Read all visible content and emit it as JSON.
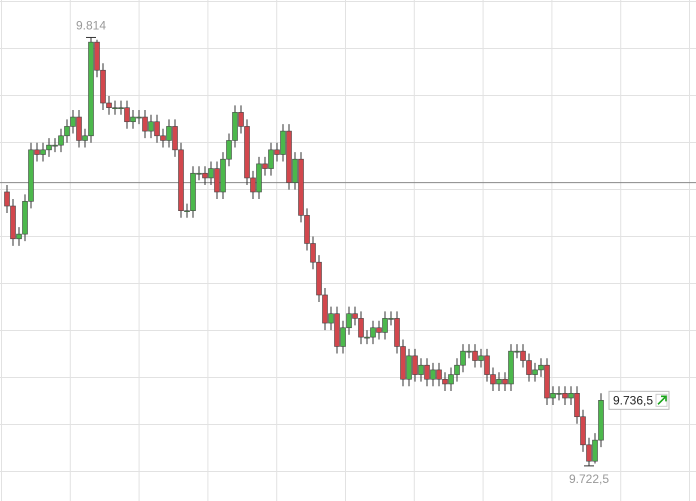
{
  "chart_data": {
    "type": "candlestick",
    "open": [
      9781,
      9778,
      9771,
      9772,
      9779,
      9790,
      9789,
      9790,
      9791,
      9791,
      9793,
      9795,
      9797,
      9792,
      9793,
      9813,
      9807,
      9800,
      9799,
      9799,
      9799,
      9796,
      9797,
      9797,
      9794,
      9796,
      9793,
      9792,
      9795,
      9790,
      9777,
      9777,
      9785,
      9785,
      9784,
      9786,
      9781,
      9788,
      9792,
      9798,
      9795,
      9784,
      9781,
      9787,
      9786,
      9790,
      9789,
      9794,
      9783,
      9788,
      9776,
      9770,
      9766,
      9759,
      9753,
      9755,
      9748,
      9752,
      9755,
      9754,
      9750,
      9750,
      9752,
      9751,
      9754,
      9754,
      9748,
      9741,
      9746,
      9742,
      9744,
      9741,
      9743,
      9741,
      9740,
      9742,
      9744,
      9747,
      9747,
      9745,
      9746,
      9742,
      9740,
      9741,
      9740,
      9747,
      9747,
      9745,
      9742,
      9743,
      9744,
      9737,
      9738,
      9738,
      9737,
      9738,
      9733,
      9727,
      9723.5,
      9728
    ],
    "high": [
      9782.5,
      9779.5,
      9773.5,
      9780.5,
      9791.5,
      9791.5,
      9791.5,
      9792.5,
      9792.5,
      9794.5,
      9796.5,
      9798.5,
      9798.5,
      9794.5,
      9814,
      9813.5,
      9808.5,
      9801.5,
      9800.5,
      9800.5,
      9800.5,
      9798.5,
      9798.5,
      9798.5,
      9797.5,
      9797.5,
      9794.5,
      9796.5,
      9796.5,
      9791.5,
      9778.5,
      9786.5,
      9786.5,
      9786.5,
      9787.5,
      9787.5,
      9789.5,
      9793.5,
      9799.5,
      9799.5,
      9796.5,
      9785.5,
      9788.5,
      9788.5,
      9791.5,
      9791.5,
      9795.5,
      9795.5,
      9789.5,
      9789.5,
      9777.5,
      9771.5,
      9767.5,
      9760.5,
      9756.5,
      9756.5,
      9753.5,
      9756.5,
      9756.5,
      9755.5,
      9751.5,
      9753.5,
      9753.5,
      9755.5,
      9755.5,
      9755.5,
      9749.5,
      9747.5,
      9747.5,
      9745.5,
      9745.5,
      9744.5,
      9744.5,
      9742.5,
      9743.5,
      9745.5,
      9748.5,
      9748.5,
      9748.5,
      9747.5,
      9747.5,
      9743.5,
      9742.5,
      9742.5,
      9748.5,
      9748.5,
      9748.5,
      9746.5,
      9744.5,
      9745.5,
      9745.5,
      9739.5,
      9739.5,
      9739.5,
      9739.5,
      9739.5,
      9734.5,
      9728.5,
      9729.5,
      9738
    ],
    "low": [
      9776.5,
      9769.5,
      9769.5,
      9770.5,
      9777.5,
      9787.5,
      9787.5,
      9788.5,
      9789.5,
      9789.5,
      9791.5,
      9793.5,
      9790.5,
      9790.5,
      9791.5,
      9805.5,
      9798.5,
      9797.5,
      9797.5,
      9797.5,
      9794.5,
      9794.5,
      9795.5,
      9792.5,
      9792.5,
      9791.5,
      9790.5,
      9790.5,
      9788.5,
      9775.5,
      9775.5,
      9775.5,
      9783.5,
      9782.5,
      9782.5,
      9779.5,
      9779.5,
      9786.5,
      9790.5,
      9793.5,
      9782.5,
      9779.5,
      9779.5,
      9784.5,
      9784.5,
      9787.5,
      9787.5,
      9781.5,
      9781.5,
      9774.5,
      9768.5,
      9764.5,
      9757.5,
      9751.5,
      9751.5,
      9746.5,
      9746.5,
      9750.5,
      9752.5,
      9748.5,
      9748.5,
      9748.5,
      9749.5,
      9749.5,
      9752.5,
      9746.5,
      9739.5,
      9739.5,
      9740.5,
      9740.5,
      9739.5,
      9739.5,
      9739.5,
      9738.5,
      9738.5,
      9740.5,
      9742.5,
      9745.5,
      9743.5,
      9743.5,
      9740.5,
      9738.5,
      9738.5,
      9738.5,
      9738.5,
      9745.5,
      9743.5,
      9740.5,
      9740.5,
      9741.5,
      9735.5,
      9735.5,
      9736.5,
      9735.5,
      9735.5,
      9731.5,
      9725.5,
      9722.5,
      9723,
      9726.5
    ],
    "close": [
      9778,
      9771,
      9772,
      9779,
      9790,
      9789,
      9790,
      9791,
      9791,
      9793,
      9795,
      9797,
      9792,
      9793,
      9813,
      9807,
      9800,
      9799,
      9799,
      9799,
      9796,
      9797,
      9797,
      9794,
      9796,
      9793,
      9792,
      9795,
      9790,
      9777,
      9777,
      9785,
      9785,
      9784,
      9786,
      9781,
      9788,
      9792,
      9798,
      9795,
      9784,
      9781,
      9787,
      9786,
      9790,
      9789,
      9794,
      9783,
      9788,
      9776,
      9770,
      9766,
      9759,
      9753,
      9755,
      9748,
      9752,
      9755,
      9754,
      9750,
      9750,
      9752,
      9751,
      9754,
      9754,
      9748,
      9741,
      9746,
      9742,
      9744,
      9741,
      9743,
      9741,
      9740,
      9742,
      9744,
      9747,
      9747,
      9745,
      9746,
      9742,
      9740,
      9741,
      9740,
      9747,
      9747,
      9745,
      9742,
      9743,
      9744,
      9737,
      9738,
      9738,
      9737,
      9738,
      9733,
      9727,
      9723.5,
      9728,
      9736.5
    ],
    "ylim": [
      9715,
      9822
    ],
    "grid": true,
    "up_color": "#4cb84c",
    "down_color": "#d2474d",
    "reference_line": 9783,
    "high_label": {
      "value": 9814,
      "label": "9.814"
    },
    "low_label": {
      "value": 9722.5,
      "label": "9.722,5"
    },
    "last_label": {
      "value": 9736.5,
      "label": "9.736,5"
    }
  }
}
